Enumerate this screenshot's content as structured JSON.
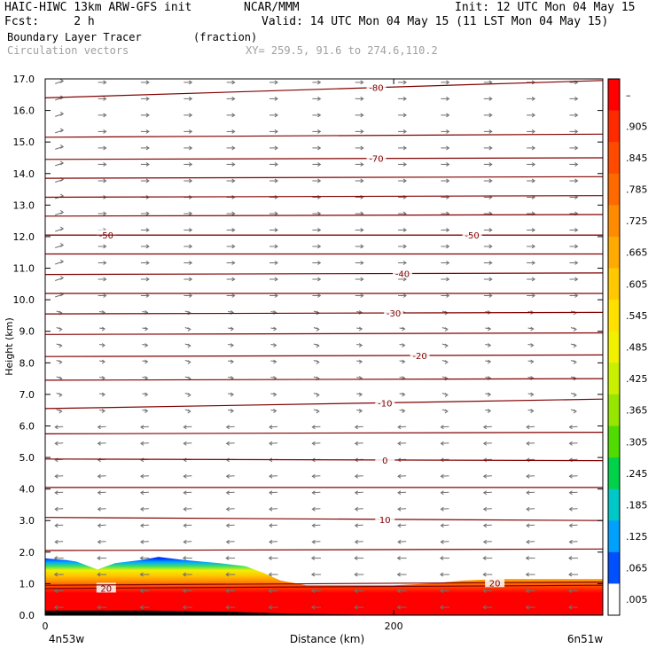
{
  "header": {
    "title_left": "HAIC-HIWC 13km ARW-GFS init",
    "title_org": "NCAR/MMM",
    "init": "Init: 12 UTC Mon 04 May 15",
    "fcst": "Fcst:     2 h",
    "valid": "Valid: 14 UTC Mon 04 May 15 (11 LST Mon 04 May 15)",
    "field": "Boundary Layer Tracer",
    "units": "(fraction)",
    "overlay": "Circulation vectors",
    "xy": "XY= 259.5, 91.6 to 274.6,110.2"
  },
  "chart_data": {
    "type": "heatmap",
    "ylabel": "Height (km)",
    "xlabel": "Distance (km)",
    "x_left_label": "4n53w",
    "x_right_label": "6n51w",
    "x_ticks": [
      {
        "value": 0,
        "label": "0"
      },
      {
        "value": 200,
        "label": "200"
      }
    ],
    "xlim": [
      0,
      320
    ],
    "ylim": [
      0,
      17
    ],
    "y_ticks": [
      "0.0",
      "1.0",
      "2.0",
      "3.0",
      "4.0",
      "5.0",
      "6.0",
      "7.0",
      "8.0",
      "9.0",
      "10.0",
      "11.0",
      "12.0",
      "13.0",
      "14.0",
      "15.0",
      "16.0",
      "17.0"
    ],
    "colorbar": {
      "labels": [
        "–",
        ".905",
        ".845",
        ".785",
        ".725",
        ".665",
        ".605",
        ".545",
        ".485",
        ".425",
        ".365",
        ".305",
        ".245",
        ".185",
        ".125",
        ".065",
        ".005"
      ],
      "colors": [
        "#ff0000",
        "#ff2a00",
        "#ff4a00",
        "#ff6a00",
        "#ff8c00",
        "#ffaa00",
        "#ffc800",
        "#ffe000",
        "#f0f000",
        "#c8f000",
        "#96e600",
        "#50dc00",
        "#00d24a",
        "#00c8c8",
        "#00a0ff",
        "#0050ff",
        "#ffffff"
      ]
    },
    "isotherms": [
      {
        "label": "-80",
        "y0": 16.4,
        "y1": 16.95,
        "label_x": 190
      },
      {
        "label": "",
        "y0": 15.15,
        "y1": 15.25,
        "label_x": null
      },
      {
        "label": "-70",
        "y0": 14.45,
        "y1": 14.5,
        "label_x": 190
      },
      {
        "label": "",
        "y0": 13.85,
        "y1": 13.9,
        "label_x": null
      },
      {
        "label": "",
        "y0": 13.25,
        "y1": 13.3,
        "label_x": null
      },
      {
        "label": "",
        "y0": 12.65,
        "y1": 12.7,
        "label_x": null
      },
      {
        "label": "-50",
        "y0": 12.05,
        "y1": 12.05,
        "label_x": 35
      },
      {
        "label": "-50",
        "y0": 12.05,
        "y1": 12.05,
        "label_x": 245
      },
      {
        "label": "",
        "y0": 11.45,
        "y1": 11.45,
        "label_x": null
      },
      {
        "label": "-40",
        "y0": 10.8,
        "y1": 10.85,
        "label_x": 205
      },
      {
        "label": "",
        "y0": 10.2,
        "y1": 10.2,
        "label_x": null
      },
      {
        "label": "-30",
        "y0": 9.55,
        "y1": 9.6,
        "label_x": 200
      },
      {
        "label": "",
        "y0": 8.9,
        "y1": 8.95,
        "label_x": null
      },
      {
        "label": "-20",
        "y0": 8.2,
        "y1": 8.25,
        "label_x": 215
      },
      {
        "label": "",
        "y0": 7.45,
        "y1": 7.5,
        "label_x": null
      },
      {
        "label": "-10",
        "y0": 6.55,
        "y1": 6.85,
        "label_x": 195
      },
      {
        "label": "",
        "y0": 5.75,
        "y1": 5.8,
        "label_x": null
      },
      {
        "label": "0",
        "y0": 4.95,
        "y1": 4.9,
        "label_x": 195
      },
      {
        "label": "",
        "y0": 4.05,
        "y1": 4.05,
        "label_x": null
      },
      {
        "label": "10",
        "y0": 3.1,
        "y1": 3.0,
        "label_x": 195
      },
      {
        "label": "",
        "y0": 2.05,
        "y1": 2.1,
        "label_x": null
      },
      {
        "label": "20",
        "y0": 0.85,
        "y1": 0.95,
        "label_x": 35
      },
      {
        "label": "20",
        "y0": 0.95,
        "y1": 1.05,
        "label_x": 258
      }
    ],
    "tracer_top_km": [
      [
        0,
        1.8
      ],
      [
        12,
        1.75
      ],
      [
        18,
        1.7
      ],
      [
        30,
        1.45
      ],
      [
        40,
        1.65
      ],
      [
        55,
        1.75
      ],
      [
        65,
        1.85
      ],
      [
        80,
        1.75
      ],
      [
        100,
        1.65
      ],
      [
        115,
        1.55
      ],
      [
        125,
        1.35
      ],
      [
        135,
        1.1
      ],
      [
        150,
        0.95
      ],
      [
        175,
        0.95
      ],
      [
        200,
        0.95
      ],
      [
        220,
        1.0
      ],
      [
        240,
        1.1
      ],
      [
        260,
        1.15
      ],
      [
        320,
        1.15
      ]
    ],
    "terrain_km": [
      [
        0,
        0.15
      ],
      [
        60,
        0.15
      ],
      [
        110,
        0.1
      ],
      [
        140,
        0.05
      ],
      [
        180,
        0.02
      ],
      [
        320,
        0.02
      ]
    ]
  }
}
